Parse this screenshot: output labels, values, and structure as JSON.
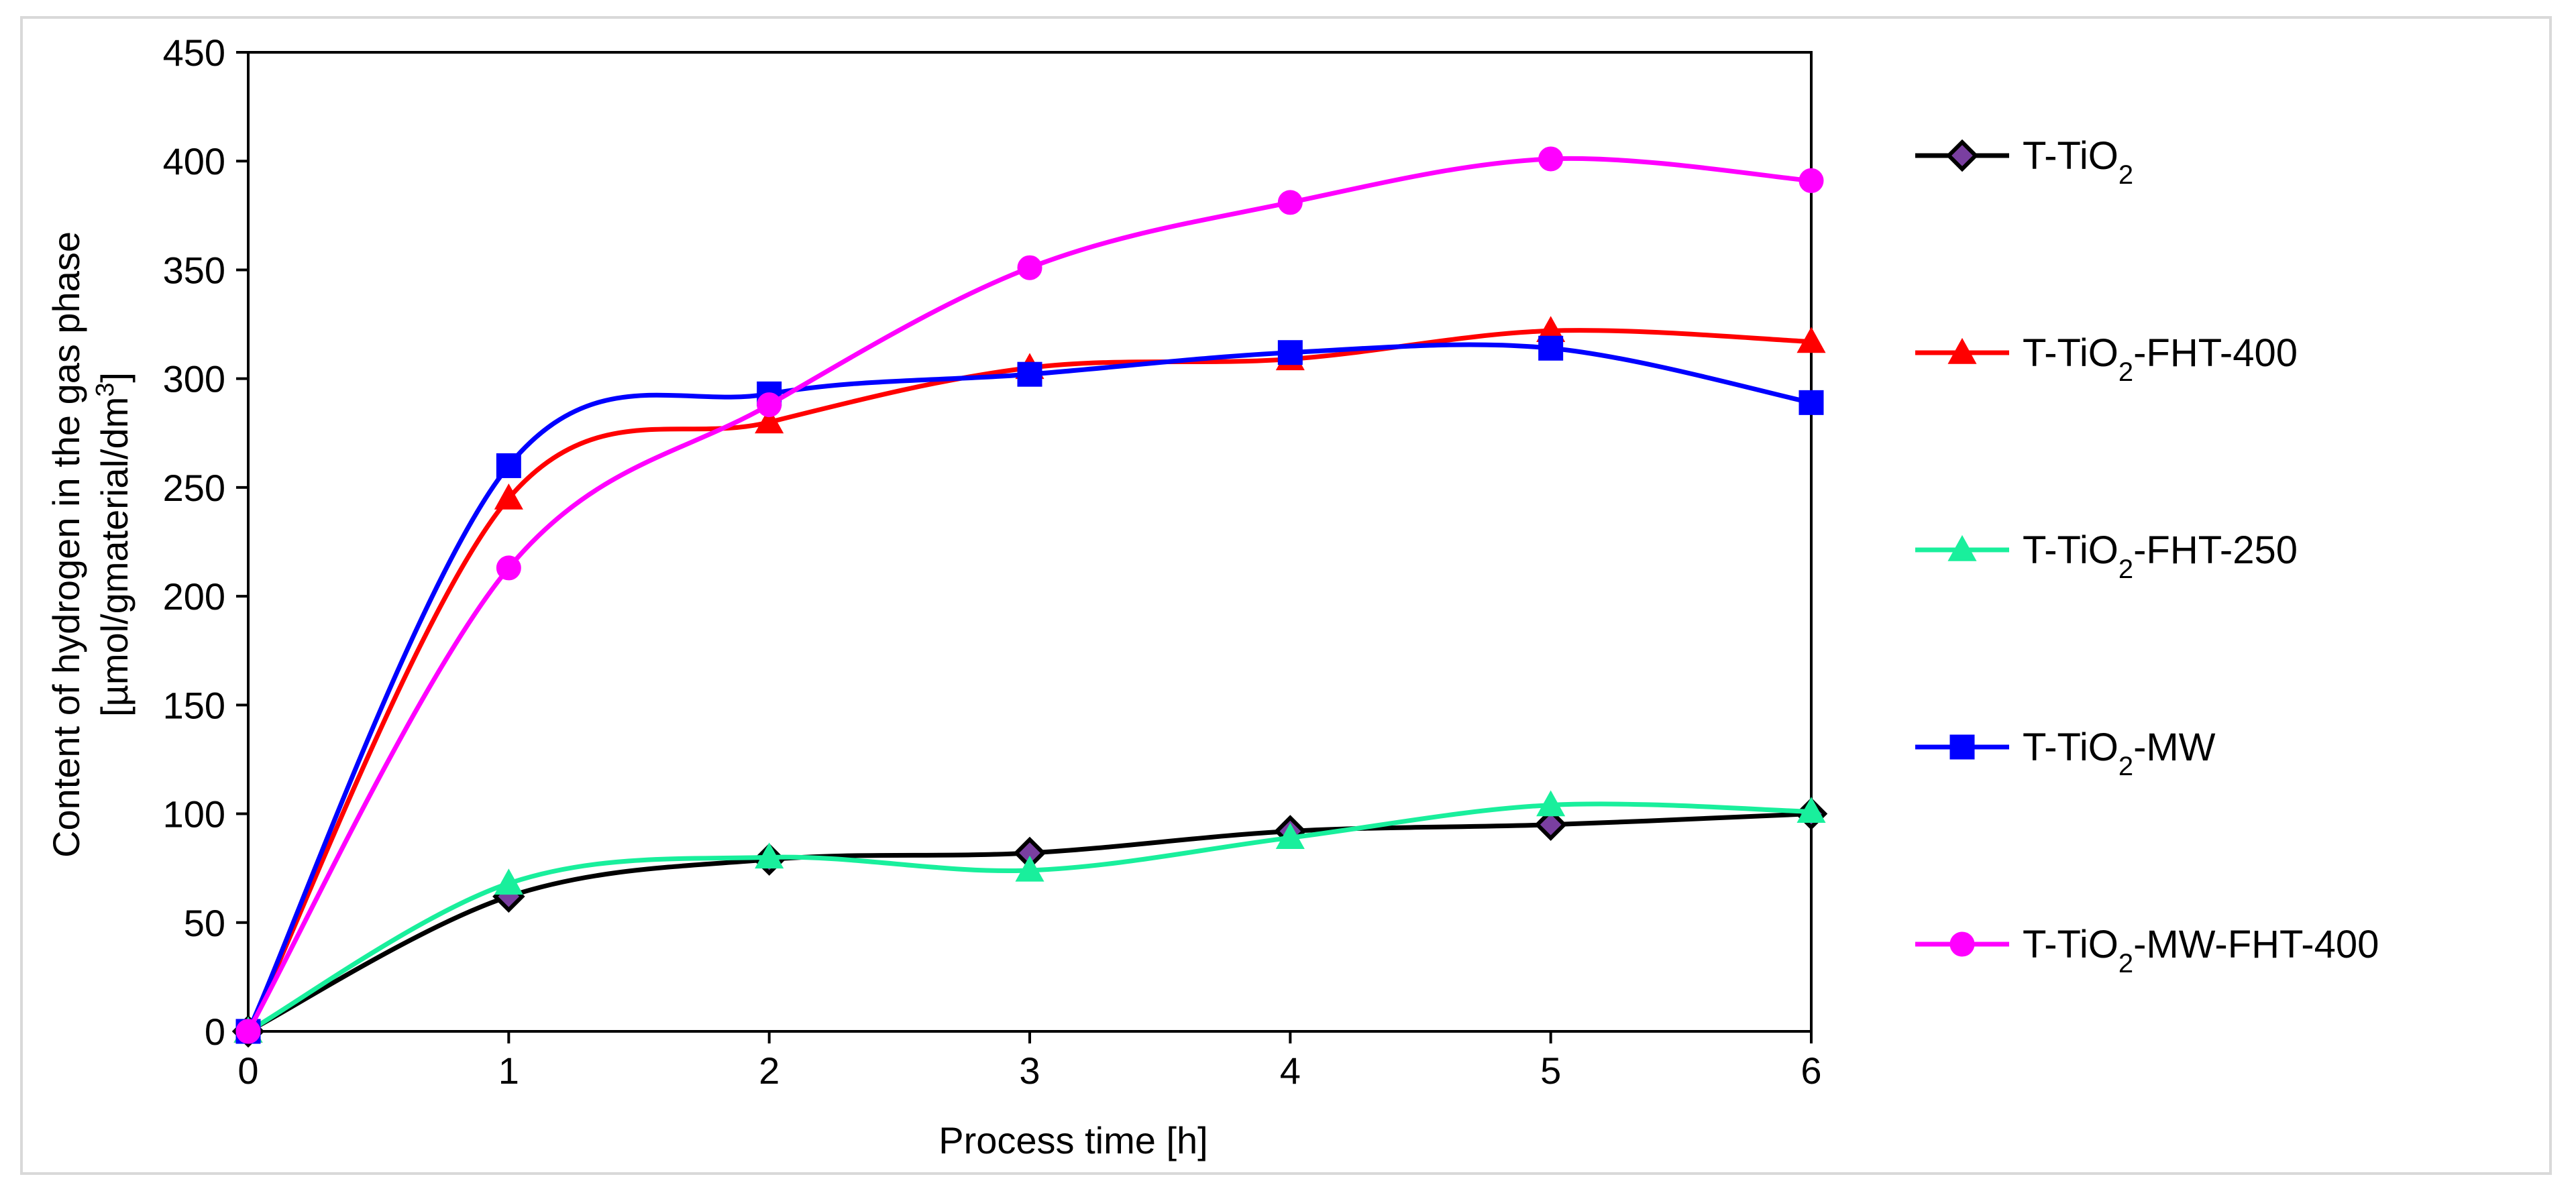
{
  "chart_data": {
    "type": "line",
    "title": "",
    "xlabel": "Process time [h]",
    "ylabel_line1": "Content of hydrogen in the gas phase",
    "ylabel_line2_prefix": "[µmol/gmaterial/dm",
    "ylabel_line2_sup": "3",
    "ylabel_line2_suffix": "]",
    "x": [
      0,
      1,
      2,
      3,
      4,
      5,
      6
    ],
    "xlim": [
      0,
      6
    ],
    "ylim": [
      0,
      450
    ],
    "xticks": [
      "0",
      "1",
      "2",
      "3",
      "4",
      "5",
      "6"
    ],
    "yticks": [
      "0",
      "50",
      "100",
      "150",
      "200",
      "250",
      "300",
      "350",
      "400",
      "450"
    ],
    "grid": false,
    "legend_position": "right",
    "series": [
      {
        "id": "ttio2",
        "name": "T-TiO2",
        "label_base": "T-TiO",
        "label_sub": "2",
        "label_suffix": "",
        "color": "#000000",
        "marker": "diamond",
        "marker_fill": "#7a3fa0",
        "values": [
          0,
          62,
          79,
          82,
          92,
          95,
          100
        ]
      },
      {
        "id": "fht400",
        "name": "T-TiO2-FHT-400",
        "label_base": "T-TiO",
        "label_sub": "2",
        "label_suffix": "-FHT-400",
        "color": "#ff0000",
        "marker": "triangle",
        "marker_fill": "#ff0000",
        "values": [
          0,
          245,
          280,
          305,
          309,
          322,
          317
        ]
      },
      {
        "id": "fht250",
        "name": "T-TiO2-FHT-250",
        "label_base": "T-TiO",
        "label_sub": "2",
        "label_suffix": "-FHT-250",
        "color": "#19ef9c",
        "marker": "triangle",
        "marker_fill": "#19ef9c",
        "values": [
          0,
          68,
          80,
          74,
          89,
          104,
          101
        ]
      },
      {
        "id": "mw",
        "name": "T-TiO2-MW",
        "label_base": "T-TiO",
        "label_sub": "2",
        "label_suffix": "-MW",
        "color": "#0000ff",
        "marker": "square",
        "marker_fill": "#0000ff",
        "values": [
          0,
          260,
          293,
          302,
          312,
          314,
          289
        ]
      },
      {
        "id": "mwfht400",
        "name": "T-TiO2-MW-FHT-400",
        "label_base": "T-TiO",
        "label_sub": "2",
        "label_suffix": "-MW-FHT-400",
        "color": "#ff00ff",
        "marker": "circle",
        "marker_fill": "#ff00ff",
        "values": [
          0,
          213,
          288,
          351,
          381,
          401,
          391
        ]
      }
    ]
  }
}
